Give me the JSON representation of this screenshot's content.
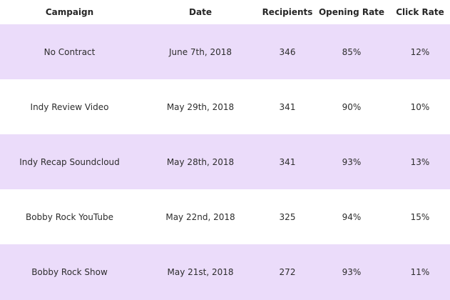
{
  "colors": {
    "shaded_row": "#ebdcfa",
    "plain_row": "#ffffff",
    "text": "#2d2d2d"
  },
  "table": {
    "headers": {
      "campaign": "Campaign",
      "date": "Date",
      "recipients": "Recipients",
      "opening_rate": "Opening Rate",
      "click_rate": "Click Rate"
    },
    "rows": [
      {
        "campaign": "No Contract",
        "date": "June 7th, 2018",
        "recipients": "346",
        "opening_rate": "85%",
        "click_rate": "12%"
      },
      {
        "campaign": "Indy Review Video",
        "date": "May 29th, 2018",
        "recipients": "341",
        "opening_rate": "90%",
        "click_rate": "10%"
      },
      {
        "campaign": "Indy Recap Soundcloud",
        "date": "May 28th, 2018",
        "recipients": "341",
        "opening_rate": "93%",
        "click_rate": "13%"
      },
      {
        "campaign": "Bobby Rock YouTube",
        "date": "May 22nd, 2018",
        "recipients": "325",
        "opening_rate": "94%",
        "click_rate": "15%"
      },
      {
        "campaign": "Bobby Rock Show",
        "date": "May 21st, 2018",
        "recipients": "272",
        "opening_rate": "93%",
        "click_rate": "11%"
      }
    ]
  }
}
